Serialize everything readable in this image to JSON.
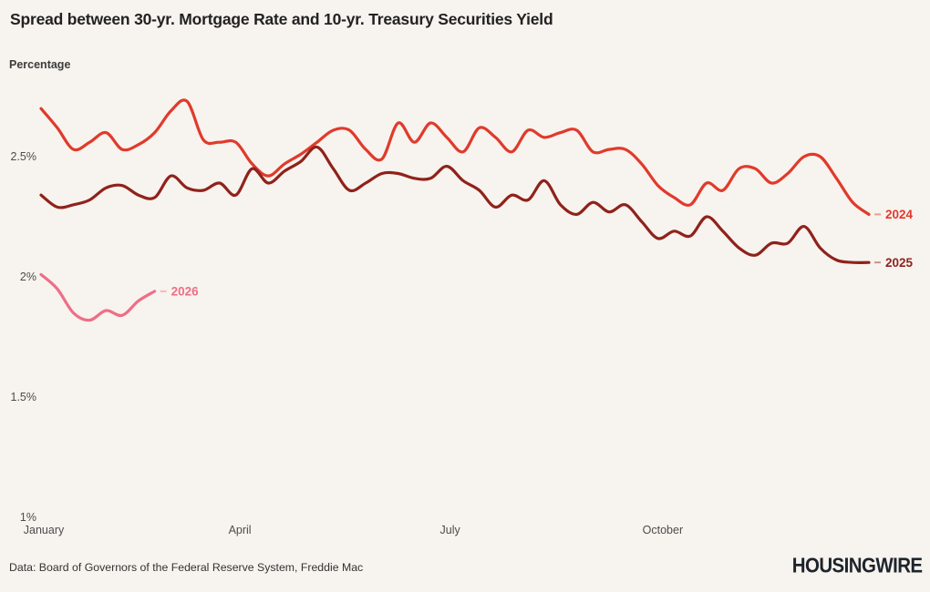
{
  "header": {
    "title": "Spread between 30-yr. Mortgage Rate and 10-yr. Treasury Securities Yield",
    "subtitle": "Percentage"
  },
  "footer": {
    "source": "Data: Board of Governors of the Federal Reserve System, Freddie Mac",
    "logo": "HOUSINGWIRE"
  },
  "colors": {
    "background": "#f7f3ee",
    "title_text": "#222222",
    "axis_text": "#4d4d4d",
    "series_2024": "#e03a2b",
    "series_2025": "#8f221b",
    "series_2026": "#ee6e88"
  },
  "chart_data": {
    "type": "line",
    "title": "Spread between 30-yr. Mortgage Rate and 10-yr. Treasury Securities Yield",
    "ylabel": "Percentage",
    "unit": "%",
    "grid": false,
    "legend_position": "line-end-labels",
    "x_axis": {
      "ticks": [
        {
          "label": "January",
          "week": 0.17
        },
        {
          "label": "April",
          "week": 12.25
        },
        {
          "label": "July",
          "week": 25.2
        },
        {
          "label": "October",
          "week": 38.3
        }
      ],
      "points_are": "weekly observations"
    },
    "y_axis": {
      "ticks": [
        {
          "label": "2.5%",
          "value": 2.5
        },
        {
          "label": "2%",
          "value": 2.0
        },
        {
          "label": "1.5%",
          "value": 1.5
        },
        {
          "label": "1%",
          "value": 1.0
        }
      ],
      "range": [
        1.0,
        2.8
      ]
    },
    "series": [
      {
        "name": "2024",
        "color": "#e03a2b",
        "values": [
          2.7,
          2.62,
          2.53,
          2.56,
          2.6,
          2.53,
          2.55,
          2.6,
          2.69,
          2.73,
          2.57,
          2.56,
          2.56,
          2.47,
          2.42,
          2.47,
          2.51,
          2.56,
          2.61,
          2.61,
          2.53,
          2.49,
          2.64,
          2.56,
          2.64,
          2.58,
          2.52,
          2.62,
          2.58,
          2.52,
          2.61,
          2.58,
          2.6,
          2.61,
          2.52,
          2.53,
          2.53,
          2.47,
          2.38,
          2.33,
          2.3,
          2.39,
          2.36,
          2.45,
          2.45,
          2.39,
          2.43,
          2.5,
          2.5,
          2.41,
          2.31,
          2.26
        ]
      },
      {
        "name": "2025",
        "color": "#8f221b",
        "values": [
          2.34,
          2.29,
          2.3,
          2.32,
          2.37,
          2.38,
          2.34,
          2.33,
          2.42,
          2.37,
          2.36,
          2.39,
          2.34,
          2.45,
          2.39,
          2.44,
          2.48,
          2.54,
          2.45,
          2.36,
          2.39,
          2.43,
          2.43,
          2.41,
          2.41,
          2.46,
          2.4,
          2.36,
          2.29,
          2.34,
          2.32,
          2.4,
          2.3,
          2.26,
          2.31,
          2.27,
          2.3,
          2.23,
          2.16,
          2.19,
          2.17,
          2.25,
          2.19,
          2.12,
          2.09,
          2.14,
          2.14,
          2.21,
          2.12,
          2.07,
          2.06,
          2.06
        ]
      },
      {
        "name": "2026",
        "color": "#ee6e88",
        "values": [
          2.01,
          1.95,
          1.85,
          1.82,
          1.86,
          1.84,
          1.9,
          1.94
        ]
      }
    ]
  }
}
